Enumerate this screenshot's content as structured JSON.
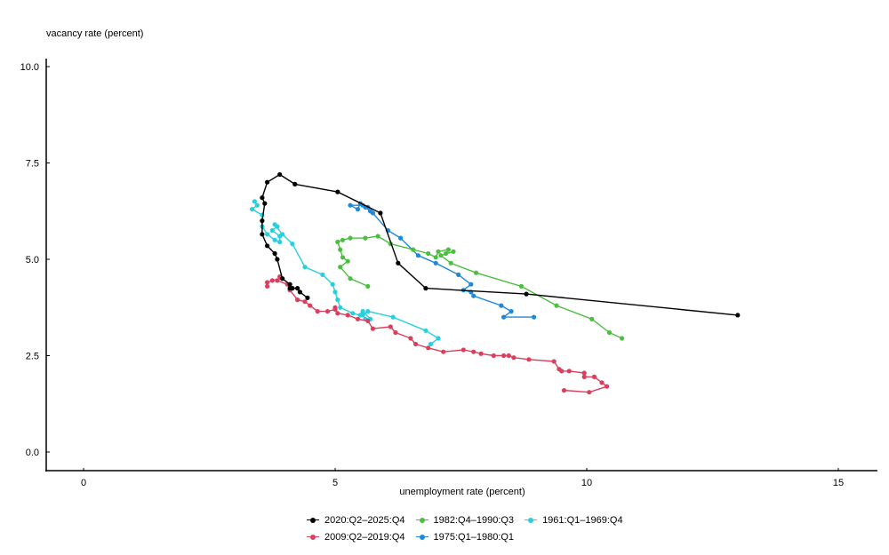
{
  "chart_data": {
    "type": "line",
    "title": "",
    "xlabel": "unemployment rate (percent)",
    "ylabel": "vacancy rate (percent)",
    "xlim": [
      -0.75,
      15.75
    ],
    "ylim": [
      -0.5,
      10.2
    ],
    "xticks": [
      0,
      5,
      10,
      15
    ],
    "xtick_labels": [
      "0",
      "5",
      "10",
      "15"
    ],
    "yticks": [
      0.0,
      2.5,
      5.0,
      7.5,
      10.0
    ],
    "ytick_labels": [
      "0.0",
      "2.5",
      "5.0",
      "7.5",
      "10.0"
    ],
    "grid": false,
    "legend_position": "bottom",
    "series": [
      {
        "name": "2020:Q2–2025:Q4",
        "color": "#000000",
        "points": [
          [
            13.0,
            3.55
          ],
          [
            8.8,
            4.1
          ],
          [
            6.8,
            4.25
          ],
          [
            6.25,
            4.9
          ],
          [
            5.9,
            6.2
          ],
          [
            5.05,
            6.75
          ],
          [
            4.2,
            6.95
          ],
          [
            3.9,
            7.2
          ],
          [
            3.65,
            7.0
          ],
          [
            3.55,
            6.6
          ],
          [
            3.6,
            6.45
          ],
          [
            3.55,
            6.0
          ],
          [
            3.55,
            5.65
          ],
          [
            3.65,
            5.35
          ],
          [
            3.8,
            5.15
          ],
          [
            3.85,
            5.0
          ],
          [
            3.95,
            4.5
          ],
          [
            4.1,
            4.35
          ],
          [
            4.15,
            4.25
          ],
          [
            4.1,
            4.25
          ],
          [
            4.25,
            4.25
          ],
          [
            4.3,
            4.15
          ],
          [
            4.45,
            4.0
          ]
        ]
      },
      {
        "name": "2009:Q2–2019:Q4",
        "color": "#d9405e",
        "points": [
          [
            3.65,
            4.3
          ],
          [
            3.65,
            4.4
          ],
          [
            3.75,
            4.45
          ],
          [
            3.95,
            4.5
          ],
          [
            3.9,
            4.55
          ],
          [
            3.85,
            4.45
          ],
          [
            4.05,
            4.35
          ],
          [
            4.1,
            4.2
          ],
          [
            4.25,
            3.95
          ],
          [
            4.4,
            3.9
          ],
          [
            4.5,
            3.8
          ],
          [
            4.65,
            3.65
          ],
          [
            4.85,
            3.65
          ],
          [
            5.0,
            3.7
          ],
          [
            5.0,
            3.75
          ],
          [
            5.05,
            3.6
          ],
          [
            5.25,
            3.55
          ],
          [
            5.45,
            3.45
          ],
          [
            5.65,
            3.4
          ],
          [
            5.75,
            3.2
          ],
          [
            6.1,
            3.25
          ],
          [
            6.2,
            3.1
          ],
          [
            6.5,
            2.95
          ],
          [
            6.6,
            2.8
          ],
          [
            6.85,
            2.7
          ],
          [
            7.15,
            2.6
          ],
          [
            7.55,
            2.65
          ],
          [
            7.75,
            2.6
          ],
          [
            7.9,
            2.55
          ],
          [
            8.15,
            2.5
          ],
          [
            8.35,
            2.5
          ],
          [
            8.45,
            2.5
          ],
          [
            8.55,
            2.45
          ],
          [
            8.85,
            2.4
          ],
          [
            9.35,
            2.35
          ],
          [
            9.45,
            2.15
          ],
          [
            9.5,
            2.1
          ],
          [
            9.65,
            2.1
          ],
          [
            9.95,
            2.05
          ],
          [
            9.95,
            1.95
          ],
          [
            10.15,
            1.95
          ],
          [
            10.3,
            1.8
          ],
          [
            10.4,
            1.7
          ],
          [
            10.05,
            1.55
          ],
          [
            9.55,
            1.6
          ]
        ]
      },
      {
        "name": "1982:Q4–1990:Q3",
        "color": "#4dbf40",
        "points": [
          [
            10.7,
            2.95
          ],
          [
            10.45,
            3.1
          ],
          [
            10.1,
            3.45
          ],
          [
            9.4,
            3.8
          ],
          [
            8.7,
            4.3
          ],
          [
            7.8,
            4.65
          ],
          [
            7.3,
            4.9
          ],
          [
            7.1,
            5.1
          ],
          [
            7.35,
            5.2
          ],
          [
            7.2,
            5.15
          ],
          [
            7.25,
            5.25
          ],
          [
            7.05,
            5.2
          ],
          [
            7.0,
            5.05
          ],
          [
            6.85,
            5.15
          ],
          [
            6.55,
            5.25
          ],
          [
            6.1,
            5.4
          ],
          [
            5.85,
            5.6
          ],
          [
            5.6,
            5.55
          ],
          [
            5.3,
            5.55
          ],
          [
            5.15,
            5.5
          ],
          [
            5.05,
            5.45
          ],
          [
            5.1,
            5.25
          ],
          [
            5.15,
            5.05
          ],
          [
            5.25,
            4.95
          ],
          [
            5.1,
            4.8
          ],
          [
            5.3,
            4.5
          ],
          [
            5.65,
            4.3
          ]
        ]
      },
      {
        "name": "1975:Q1–1980:Q1",
        "color": "#1f88d9",
        "points": [
          [
            8.95,
            3.5
          ],
          [
            8.35,
            3.5
          ],
          [
            8.5,
            3.65
          ],
          [
            8.3,
            3.8
          ],
          [
            7.75,
            4.05
          ],
          [
            7.7,
            4.15
          ],
          [
            7.55,
            4.2
          ],
          [
            7.7,
            4.35
          ],
          [
            7.45,
            4.6
          ],
          [
            7.0,
            4.9
          ],
          [
            6.65,
            5.1
          ],
          [
            6.3,
            5.55
          ],
          [
            6.05,
            5.75
          ],
          [
            5.75,
            6.2
          ],
          [
            5.7,
            6.25
          ],
          [
            5.6,
            6.35
          ],
          [
            5.55,
            6.4
          ],
          [
            5.3,
            6.4
          ],
          [
            5.45,
            6.3
          ],
          [
            5.5,
            6.45
          ],
          [
            5.65,
            6.35
          ]
        ]
      },
      {
        "name": "1961:Q1–1969:Q4",
        "color": "#26d0de",
        "points": [
          [
            3.4,
            6.5
          ],
          [
            3.45,
            6.4
          ],
          [
            3.35,
            6.3
          ],
          [
            3.55,
            6.15
          ],
          [
            3.55,
            5.85
          ],
          [
            3.65,
            5.65
          ],
          [
            3.8,
            5.5
          ],
          [
            3.9,
            5.45
          ],
          [
            3.9,
            5.6
          ],
          [
            3.75,
            5.75
          ],
          [
            3.85,
            5.85
          ],
          [
            3.8,
            5.9
          ],
          [
            3.95,
            5.65
          ],
          [
            4.15,
            5.4
          ],
          [
            4.4,
            4.8
          ],
          [
            4.75,
            4.6
          ],
          [
            4.95,
            4.35
          ],
          [
            5.0,
            4.15
          ],
          [
            5.05,
            3.95
          ],
          [
            5.1,
            3.75
          ],
          [
            5.35,
            3.6
          ],
          [
            5.5,
            3.55
          ],
          [
            5.55,
            3.65
          ],
          [
            5.7,
            3.45
          ],
          [
            5.6,
            3.45
          ],
          [
            5.55,
            3.55
          ],
          [
            5.65,
            3.65
          ],
          [
            6.15,
            3.5
          ],
          [
            6.8,
            3.15
          ],
          [
            7.05,
            2.95
          ],
          [
            6.9,
            2.8
          ]
        ]
      }
    ]
  },
  "axes": {
    "ylabel": "vacancy rate (percent)",
    "xlabel": "unemployment rate (percent)"
  },
  "legend": {
    "rows": [
      [
        {
          "label": "2020:Q2–2025:Q4",
          "color": "#000000"
        },
        {
          "label": "1982:Q4–1990:Q3",
          "color": "#4dbf40"
        },
        {
          "label": "1961:Q1–1969:Q4",
          "color": "#26d0de"
        }
      ],
      [
        {
          "label": "2009:Q2–2019:Q4",
          "color": "#d9405e"
        },
        {
          "label": "1975:Q1–1980:Q1",
          "color": "#1f88d9"
        }
      ]
    ]
  }
}
